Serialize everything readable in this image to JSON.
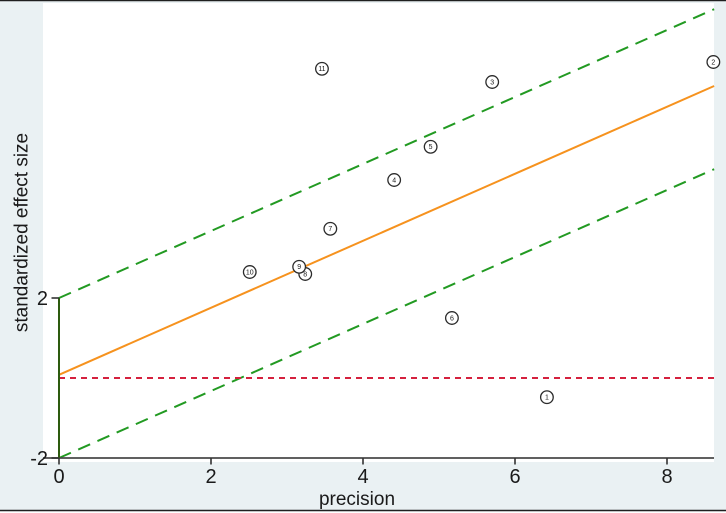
{
  "figure": {
    "kind": "galbraith-radial-plot",
    "colors": {
      "canvas_bg": "#eaf1f3",
      "plot_bg": "#ffffff",
      "border": "#1f1f1f",
      "x_axis": "#4a4a4a",
      "y_axis": "#2d5b0f",
      "tick": "#333333",
      "text": "#1a1a1a",
      "point_stroke": "#2b2b2b",
      "point_fill": "#ffffff",
      "fit_line": "#f6921e",
      "ci_band": "#229a22",
      "null_line": "#d5213e"
    }
  },
  "chart_data": {
    "type": "scatter",
    "title": "",
    "xlabel": "precision",
    "ylabel": "standardized effect size",
    "xlim": [
      -0.21,
      8.62
    ],
    "ylim": [
      -2.1,
      9.35
    ],
    "x_ticks": [
      0,
      2,
      4,
      6,
      8
    ],
    "y_ticks": [
      -2,
      2
    ],
    "grid": false,
    "legend": "none",
    "points": [
      {
        "label": "1",
        "x": 6.42,
        "y": -0.48
      },
      {
        "label": "2",
        "x": 8.61,
        "y": 7.9
      },
      {
        "label": "3",
        "x": 5.7,
        "y": 7.4
      },
      {
        "label": "4",
        "x": 4.41,
        "y": 4.95
      },
      {
        "label": "5",
        "x": 4.89,
        "y": 5.78
      },
      {
        "label": "6",
        "x": 5.17,
        "y": 1.5
      },
      {
        "label": "7",
        "x": 3.57,
        "y": 3.73
      },
      {
        "label": "8",
        "x": 3.24,
        "y": 2.6
      },
      {
        "label": "9",
        "x": 3.16,
        "y": 2.78
      },
      {
        "label": "10",
        "x": 2.51,
        "y": 2.65
      },
      {
        "label": "11",
        "x": 3.46,
        "y": 7.73
      }
    ],
    "lines": [
      {
        "name": "ci-upper-line",
        "x1": 0,
        "y1": 2,
        "x2": 8.62,
        "y2": 9.22,
        "color_key": "ci_band",
        "dash": "13,8",
        "width": 2
      },
      {
        "name": "ci-lower-line",
        "x1": 0,
        "y1": -2,
        "x2": 8.62,
        "y2": 5.22,
        "color_key": "ci_band",
        "dash": "13,8",
        "width": 2
      },
      {
        "name": "null-effect-line",
        "x1": 0,
        "y1": 0,
        "x2": 8.62,
        "y2": 0,
        "color_key": "null_line",
        "dash": "6,5",
        "width": 2
      },
      {
        "name": "fit-line",
        "x1": 0,
        "y1": 0.08,
        "x2": 8.62,
        "y2": 7.3,
        "color_key": "fit_line",
        "dash": "",
        "width": 2
      }
    ],
    "y_axis_segment": {
      "x": 0,
      "y1": -2,
      "y2": 2
    }
  }
}
